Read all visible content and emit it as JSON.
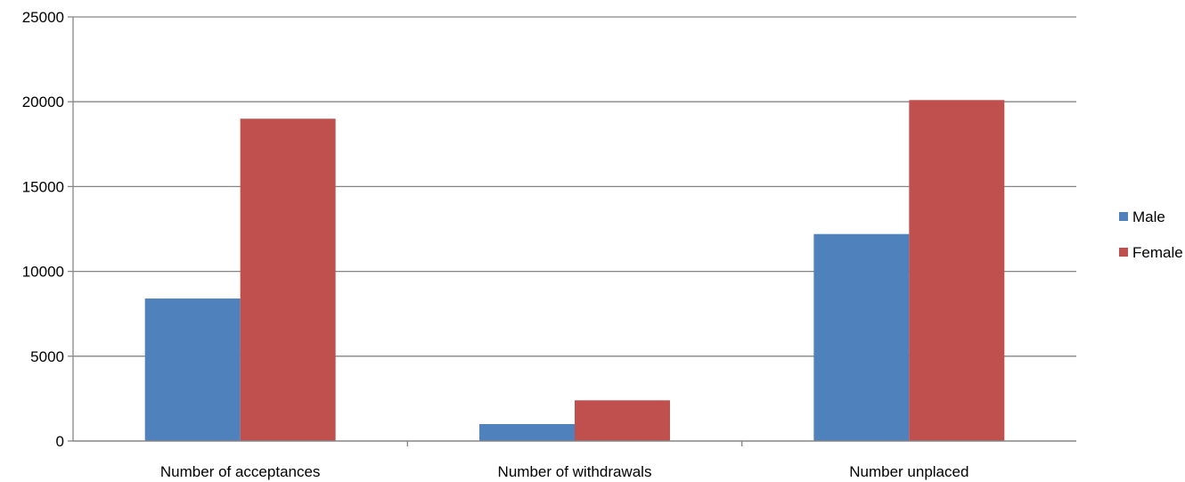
{
  "chart_data": {
    "type": "bar",
    "categories": [
      "Number of acceptances",
      "Number of withdrawals",
      "Number unplaced"
    ],
    "series": [
      {
        "name": "Male",
        "values": [
          8400,
          1000,
          12200
        ],
        "color": "#4F81BD"
      },
      {
        "name": "Female",
        "values": [
          19000,
          2400,
          20100
        ],
        "color": "#C0504D"
      }
    ],
    "ylim": [
      0,
      25000
    ],
    "yticks": [
      0,
      5000,
      10000,
      15000,
      20000,
      25000
    ],
    "grid": true,
    "legend": "right"
  }
}
